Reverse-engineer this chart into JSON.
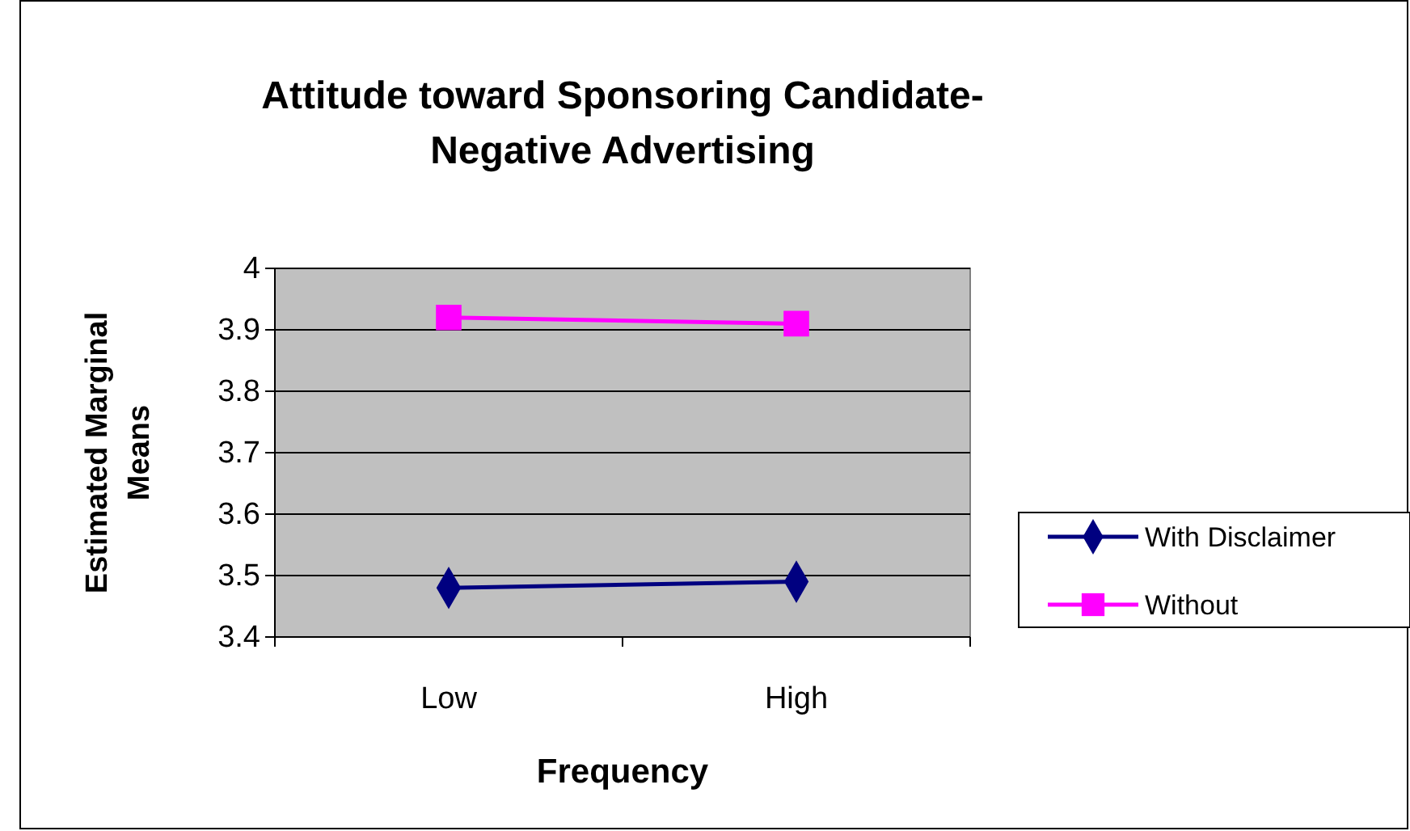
{
  "chart_data": {
    "type": "line",
    "title": "Attitude toward Sponsoring Candidate-\nNegative Advertising",
    "xlabel": "Frequency",
    "ylabel": "Estimated Marginal\nMeans",
    "categories": [
      "Low",
      "High"
    ],
    "series": [
      {
        "name": "With Disclaimer",
        "color": "#000080",
        "values": [
          3.48,
          3.49
        ],
        "marker": "diamond"
      },
      {
        "name": "Without",
        "color": "#ff00ff",
        "values": [
          3.92,
          3.91
        ],
        "marker": "square"
      }
    ],
    "ylim": [
      3.4,
      4
    ],
    "yticks": [
      3.4,
      3.5,
      3.6,
      3.7,
      3.8,
      3.9,
      4
    ],
    "grid": "y",
    "legend": "right",
    "line_style": "solid"
  }
}
